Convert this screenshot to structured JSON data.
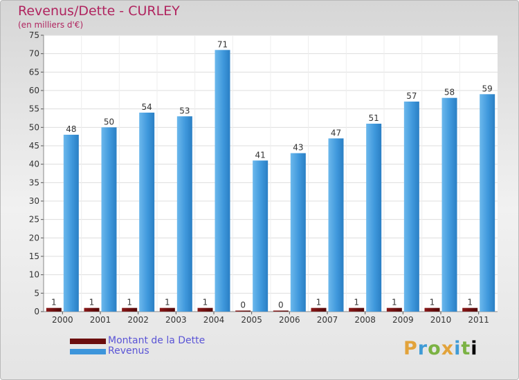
{
  "header": {
    "title": "Revenus/Dette - CURLEY",
    "subtitle": "(en milliers d'€)"
  },
  "legend": {
    "items": [
      {
        "label": "Montant de la Dette",
        "color": "#6b0d0d"
      },
      {
        "label": "Revenus",
        "color": "#3d95db"
      }
    ]
  },
  "logo": {
    "letters": [
      "P",
      "r",
      "o",
      "x",
      "i",
      "t",
      "i"
    ]
  },
  "chart_data": {
    "type": "bar",
    "title": "Revenus/Dette - CURLEY",
    "ylabel": "(en milliers d'€)",
    "xlabel": "",
    "ylim": [
      0,
      75
    ],
    "yticks": [
      0,
      5,
      10,
      15,
      20,
      25,
      30,
      35,
      40,
      45,
      50,
      55,
      60,
      65,
      70,
      75
    ],
    "grid": true,
    "legend_position": "bottom-left",
    "categories": [
      "2000",
      "2001",
      "2002",
      "2003",
      "2004",
      "2005",
      "2006",
      "2007",
      "2008",
      "2009",
      "2010",
      "2011"
    ],
    "series": [
      {
        "name": "Montant de la Dette",
        "color": "#6b0d0d",
        "values": [
          1,
          1,
          1,
          1,
          1,
          0,
          0,
          1,
          1,
          1,
          1,
          1
        ]
      },
      {
        "name": "Revenus",
        "color": "#3d95db",
        "values": [
          48,
          50,
          54,
          53,
          71,
          41,
          43,
          47,
          51,
          57,
          58,
          59
        ]
      }
    ]
  }
}
